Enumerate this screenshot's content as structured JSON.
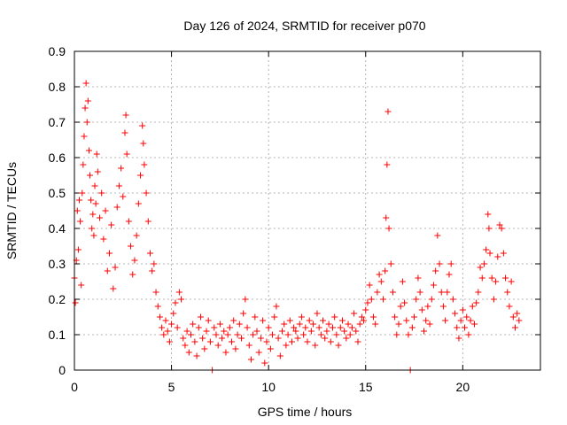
{
  "chart_data": {
    "type": "scatter",
    "title": "Day 126 of 2024, SRMTID for receiver p070",
    "xlabel": "GPS time / hours",
    "ylabel": "SRMTID / TECUs",
    "xlim": [
      0,
      24
    ],
    "ylim": [
      0,
      0.9
    ],
    "x_ticks": [
      0,
      5,
      10,
      15,
      20
    ],
    "y_ticks": [
      0,
      0.1,
      0.2,
      0.3,
      0.4,
      0.5,
      0.6,
      0.7,
      0.8,
      0.9
    ],
    "x_tick_labels": [
      "0",
      "5",
      "10",
      "15",
      "20"
    ],
    "y_tick_labels": [
      "0",
      "0.1",
      "0.2",
      "0.3",
      "0.4",
      "0.5",
      "0.6",
      "0.7",
      "0.8",
      "0.9"
    ],
    "grid": true,
    "marker": "plus",
    "color": "#ff0000",
    "series": [
      {
        "name": "SRMTID",
        "points": [
          [
            0.0,
            0.26
          ],
          [
            0.05,
            0.19
          ],
          [
            0.1,
            0.31
          ],
          [
            0.15,
            0.45
          ],
          [
            0.2,
            0.34
          ],
          [
            0.25,
            0.48
          ],
          [
            0.3,
            0.42
          ],
          [
            0.35,
            0.24
          ],
          [
            0.4,
            0.5
          ],
          [
            0.45,
            0.58
          ],
          [
            0.5,
            0.66
          ],
          [
            0.55,
            0.74
          ],
          [
            0.6,
            0.81
          ],
          [
            0.65,
            0.7
          ],
          [
            0.7,
            0.76
          ],
          [
            0.75,
            0.62
          ],
          [
            0.8,
            0.55
          ],
          [
            0.85,
            0.48
          ],
          [
            0.9,
            0.4
          ],
          [
            0.95,
            0.44
          ],
          [
            1.0,
            0.38
          ],
          [
            1.05,
            0.52
          ],
          [
            1.1,
            0.47
          ],
          [
            1.15,
            0.61
          ],
          [
            1.2,
            0.56
          ],
          [
            1.3,
            0.43
          ],
          [
            1.4,
            0.5
          ],
          [
            1.5,
            0.37
          ],
          [
            1.6,
            0.45
          ],
          [
            1.7,
            0.28
          ],
          [
            1.8,
            0.33
          ],
          [
            1.9,
            0.41
          ],
          [
            2.0,
            0.23
          ],
          [
            2.1,
            0.29
          ],
          [
            2.2,
            0.46
          ],
          [
            2.3,
            0.52
          ],
          [
            2.4,
            0.57
          ],
          [
            2.5,
            0.49
          ],
          [
            2.6,
            0.67
          ],
          [
            2.65,
            0.72
          ],
          [
            2.7,
            0.61
          ],
          [
            2.8,
            0.42
          ],
          [
            2.9,
            0.35
          ],
          [
            3.0,
            0.27
          ],
          [
            3.1,
            0.31
          ],
          [
            3.2,
            0.38
          ],
          [
            3.3,
            0.47
          ],
          [
            3.4,
            0.55
          ],
          [
            3.5,
            0.69
          ],
          [
            3.55,
            0.64
          ],
          [
            3.6,
            0.58
          ],
          [
            3.7,
            0.5
          ],
          [
            3.8,
            0.42
          ],
          [
            3.9,
            0.33
          ],
          [
            4.0,
            0.28
          ],
          [
            4.1,
            0.3
          ],
          [
            4.2,
            0.22
          ],
          [
            4.3,
            0.18
          ],
          [
            4.4,
            0.15
          ],
          [
            4.5,
            0.12
          ],
          [
            4.6,
            0.1
          ],
          [
            4.7,
            0.14
          ],
          [
            4.8,
            0.11
          ],
          [
            4.9,
            0.08
          ],
          [
            5.0,
            0.13
          ],
          [
            5.1,
            0.16
          ],
          [
            5.2,
            0.19
          ],
          [
            5.3,
            0.12
          ],
          [
            5.4,
            0.22
          ],
          [
            5.5,
            0.2
          ],
          [
            5.6,
            0.09
          ],
          [
            5.7,
            0.07
          ],
          [
            5.8,
            0.11
          ],
          [
            5.9,
            0.05
          ],
          [
            6.0,
            0.1
          ],
          [
            6.1,
            0.13
          ],
          [
            6.2,
            0.08
          ],
          [
            6.3,
            0.04
          ],
          [
            6.4,
            0.12
          ],
          [
            6.5,
            0.15
          ],
          [
            6.6,
            0.09
          ],
          [
            6.7,
            0.06
          ],
          [
            6.8,
            0.11
          ],
          [
            6.9,
            0.14
          ],
          [
            7.0,
            0.08
          ],
          [
            7.1,
            0.0
          ],
          [
            7.2,
            0.12
          ],
          [
            7.3,
            0.1
          ],
          [
            7.4,
            0.07
          ],
          [
            7.5,
            0.13
          ],
          [
            7.6,
            0.09
          ],
          [
            7.7,
            0.11
          ],
          [
            7.8,
            0.05
          ],
          [
            7.9,
            0.1
          ],
          [
            8.0,
            0.12
          ],
          [
            8.1,
            0.08
          ],
          [
            8.2,
            0.14
          ],
          [
            8.3,
            0.06
          ],
          [
            8.4,
            0.1
          ],
          [
            8.5,
            0.13
          ],
          [
            8.6,
            0.09
          ],
          [
            8.7,
            0.16
          ],
          [
            8.8,
            0.2
          ],
          [
            8.9,
            0.12
          ],
          [
            9.0,
            0.07
          ],
          [
            9.1,
            0.03
          ],
          [
            9.2,
            0.1
          ],
          [
            9.3,
            0.15
          ],
          [
            9.4,
            0.11
          ],
          [
            9.5,
            0.05
          ],
          [
            9.6,
            0.09
          ],
          [
            9.7,
            0.14
          ],
          [
            9.8,
            0.02
          ],
          [
            9.9,
            0.08
          ],
          [
            10.0,
            0.12
          ],
          [
            10.1,
            0.06
          ],
          [
            10.2,
            0.1
          ],
          [
            10.3,
            0.15
          ],
          [
            10.4,
            0.18
          ],
          [
            10.5,
            0.09
          ],
          [
            10.6,
            0.04
          ],
          [
            10.7,
            0.11
          ],
          [
            10.8,
            0.13
          ],
          [
            10.9,
            0.07
          ],
          [
            11.0,
            0.1
          ],
          [
            11.1,
            0.14
          ],
          [
            11.2,
            0.08
          ],
          [
            11.3,
            0.12
          ],
          [
            11.4,
            0.11
          ],
          [
            11.5,
            0.09
          ],
          [
            11.6,
            0.13
          ],
          [
            11.7,
            0.15
          ],
          [
            11.8,
            0.1
          ],
          [
            11.9,
            0.12
          ],
          [
            12.0,
            0.08
          ],
          [
            12.1,
            0.14
          ],
          [
            12.2,
            0.11
          ],
          [
            12.3,
            0.13
          ],
          [
            12.4,
            0.07
          ],
          [
            12.5,
            0.16
          ],
          [
            12.6,
            0.12
          ],
          [
            12.7,
            0.1
          ],
          [
            12.8,
            0.14
          ],
          [
            12.9,
            0.09
          ],
          [
            13.0,
            0.11
          ],
          [
            13.1,
            0.13
          ],
          [
            13.2,
            0.08
          ],
          [
            13.3,
            0.12
          ],
          [
            13.4,
            0.15
          ],
          [
            13.5,
            0.1
          ],
          [
            13.6,
            0.07
          ],
          [
            13.7,
            0.12
          ],
          [
            13.8,
            0.14
          ],
          [
            13.9,
            0.11
          ],
          [
            14.0,
            0.09
          ],
          [
            14.1,
            0.13
          ],
          [
            14.2,
            0.1
          ],
          [
            14.3,
            0.12
          ],
          [
            14.4,
            0.16
          ],
          [
            14.5,
            0.11
          ],
          [
            14.6,
            0.08
          ],
          [
            14.7,
            0.13
          ],
          [
            14.8,
            0.15
          ],
          [
            14.9,
            0.14
          ],
          [
            15.0,
            0.17
          ],
          [
            15.1,
            0.19
          ],
          [
            15.2,
            0.24
          ],
          [
            15.3,
            0.2
          ],
          [
            15.4,
            0.15
          ],
          [
            15.5,
            0.13
          ],
          [
            15.6,
            0.22
          ],
          [
            15.7,
            0.27
          ],
          [
            15.8,
            0.25
          ],
          [
            15.9,
            0.2
          ],
          [
            16.0,
            0.28
          ],
          [
            16.05,
            0.43
          ],
          [
            16.1,
            0.58
          ],
          [
            16.15,
            0.73
          ],
          [
            16.2,
            0.4
          ],
          [
            16.3,
            0.3
          ],
          [
            16.4,
            0.22
          ],
          [
            16.5,
            0.15
          ],
          [
            16.6,
            0.1
          ],
          [
            16.7,
            0.13
          ],
          [
            16.8,
            0.18
          ],
          [
            16.9,
            0.25
          ],
          [
            17.0,
            0.19
          ],
          [
            17.1,
            0.14
          ],
          [
            17.2,
            0.1
          ],
          [
            17.3,
            0.0
          ],
          [
            17.4,
            0.12
          ],
          [
            17.5,
            0.15
          ],
          [
            17.6,
            0.2
          ],
          [
            17.7,
            0.26
          ],
          [
            17.8,
            0.22
          ],
          [
            17.9,
            0.17
          ],
          [
            18.0,
            0.11
          ],
          [
            18.1,
            0.14
          ],
          [
            18.2,
            0.18
          ],
          [
            18.3,
            0.13
          ],
          [
            18.4,
            0.2
          ],
          [
            18.5,
            0.24
          ],
          [
            18.6,
            0.28
          ],
          [
            18.7,
            0.38
          ],
          [
            18.8,
            0.3
          ],
          [
            18.9,
            0.22
          ],
          [
            19.0,
            0.18
          ],
          [
            19.1,
            0.14
          ],
          [
            19.2,
            0.22
          ],
          [
            19.3,
            0.27
          ],
          [
            19.4,
            0.3
          ],
          [
            19.5,
            0.2
          ],
          [
            19.6,
            0.16
          ],
          [
            19.7,
            0.12
          ],
          [
            19.8,
            0.09
          ],
          [
            19.9,
            0.14
          ],
          [
            20.0,
            0.17
          ],
          [
            20.1,
            0.12
          ],
          [
            20.2,
            0.15
          ],
          [
            20.3,
            0.1
          ],
          [
            20.4,
            0.14
          ],
          [
            20.5,
            0.18
          ],
          [
            20.6,
            0.13
          ],
          [
            20.7,
            0.19
          ],
          [
            20.8,
            0.22
          ],
          [
            20.9,
            0.29
          ],
          [
            21.0,
            0.26
          ],
          [
            21.1,
            0.3
          ],
          [
            21.2,
            0.34
          ],
          [
            21.3,
            0.44
          ],
          [
            21.35,
            0.4
          ],
          [
            21.4,
            0.33
          ],
          [
            21.5,
            0.26
          ],
          [
            21.6,
            0.2
          ],
          [
            21.7,
            0.25
          ],
          [
            21.8,
            0.32
          ],
          [
            21.9,
            0.41
          ],
          [
            22.0,
            0.4
          ],
          [
            22.1,
            0.33
          ],
          [
            22.2,
            0.26
          ],
          [
            22.3,
            0.22
          ],
          [
            22.4,
            0.18
          ],
          [
            22.5,
            0.25
          ],
          [
            22.6,
            0.15
          ],
          [
            22.7,
            0.12
          ],
          [
            22.8,
            0.16
          ],
          [
            22.9,
            0.14
          ]
        ]
      }
    ]
  }
}
